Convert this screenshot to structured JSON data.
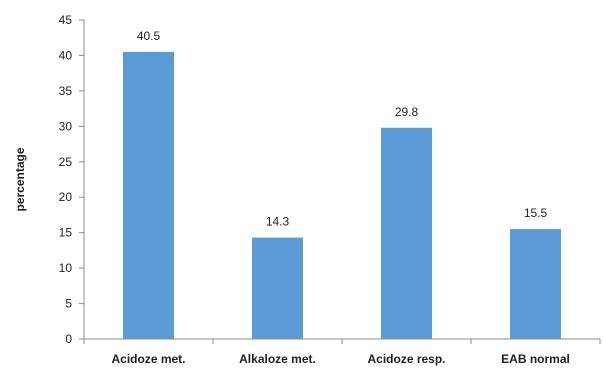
{
  "chart_data": {
    "type": "bar",
    "categories": [
      "Acidoze met.",
      "Alkaloze met.",
      "Acidoze resp.",
      "EAB normal"
    ],
    "values": [
      40.5,
      14.3,
      29.8,
      15.5
    ],
    "value_labels": [
      "40.5",
      "14.3",
      "29.8",
      "15.5"
    ],
    "title": "",
    "xlabel": "",
    "ylabel": "percentage",
    "ylim": [
      0,
      45
    ],
    "yticks": [
      0,
      5,
      10,
      15,
      20,
      25,
      30,
      35,
      40,
      45
    ],
    "ytick_labels": [
      "0",
      "5",
      "10",
      "15",
      "20",
      "25",
      "30",
      "35",
      "40",
      "45"
    ],
    "grid": false,
    "legend": "none",
    "colors": {
      "bar": "#5b9bd5",
      "axis": "#8c8c8c",
      "text": "#1f1f1f"
    }
  }
}
